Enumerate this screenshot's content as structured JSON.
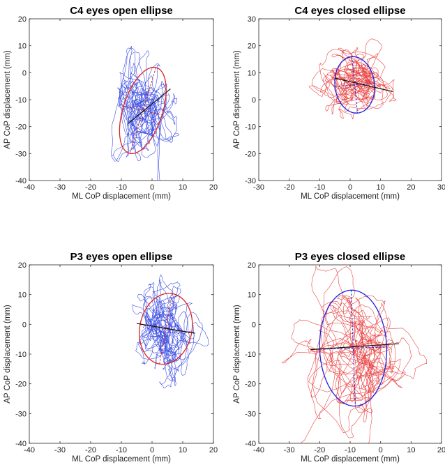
{
  "chart_data": [
    {
      "type": "line",
      "title": "C4 eyes open ellipse",
      "xlabel": "ML CoP displacement (mm)",
      "ylabel": "AP CoP displacement (mm)",
      "xlim": [
        -40,
        20
      ],
      "ylim": [
        -40,
        20
      ],
      "xticks": [
        -40,
        -30,
        -20,
        -10,
        0,
        10,
        20
      ],
      "yticks": [
        -40,
        -30,
        -20,
        -10,
        0,
        10,
        20
      ],
      "trace_color": "#2b3fe0",
      "ellipse_color": "#e02020",
      "center": [
        -3,
        -14
      ],
      "ellipse": {
        "semi_major": 16.5,
        "semi_minor": 6.5,
        "angle_deg": 75
      },
      "trace_spread": [
        4,
        8
      ],
      "regression_line": {
        "x": [
          -8,
          6
        ],
        "y": [
          -19,
          -6
        ]
      }
    },
    {
      "type": "line",
      "title": "C4 eyes closed ellipse",
      "xlabel": "ML CoP displacement (mm)",
      "ylabel": "AP CoP displacement (mm)",
      "xlim": [
        -30,
        30
      ],
      "ylim": [
        -30,
        30
      ],
      "xticks": [
        -30,
        -20,
        -10,
        0,
        10,
        20,
        30
      ],
      "yticks": [
        -30,
        -20,
        -10,
        0,
        10,
        20,
        30
      ],
      "trace_color": "#e83030",
      "ellipse_color": "#2020e0",
      "center": [
        1.5,
        5.5
      ],
      "ellipse": {
        "semi_major": 10.5,
        "semi_minor": 6.5,
        "angle_deg": 95
      },
      "trace_spread": [
        5,
        5
      ],
      "regression_line": {
        "x": [
          -5,
          14
        ],
        "y": [
          8,
          3
        ]
      }
    },
    {
      "type": "line",
      "title": "P3 eyes open ellipse",
      "xlabel": "ML CoP displacement (mm)",
      "ylabel": "AP CoP displacement (mm)",
      "xlim": [
        -40,
        20
      ],
      "ylim": [
        -40,
        20
      ],
      "xticks": [
        -40,
        -30,
        -20,
        -10,
        0,
        10,
        20
      ],
      "yticks": [
        -40,
        -30,
        -20,
        -10,
        0,
        10,
        20
      ],
      "trace_color": "#2b3fe0",
      "ellipse_color": "#e02020",
      "center": [
        4.5,
        -1.5
      ],
      "ellipse": {
        "semi_major": 12,
        "semi_minor": 8.5,
        "angle_deg": 80
      },
      "trace_spread": [
        4,
        7
      ],
      "regression_line": {
        "x": [
          -5,
          14
        ],
        "y": [
          0.3,
          -3
        ]
      }
    },
    {
      "type": "line",
      "title": "P3 eyes closed ellipse",
      "xlabel": "ML CoP displacement (mm)",
      "ylabel": "AP CoP displacement (mm)",
      "xlim": [
        -40,
        20
      ],
      "ylim": [
        -40,
        20
      ],
      "xticks": [
        -40,
        -30,
        -20,
        -10,
        0,
        10,
        20
      ],
      "yticks": [
        -40,
        -30,
        -20,
        -10,
        0,
        10,
        20
      ],
      "trace_color": "#e83030",
      "ellipse_color": "#2020e0",
      "center": [
        -9,
        -8
      ],
      "ellipse": {
        "semi_major": 19.5,
        "semi_minor": 11,
        "angle_deg": 92
      },
      "trace_spread": [
        7,
        10
      ],
      "regression_line": {
        "x": [
          -23,
          6
        ],
        "y": [
          -8.5,
          -6.5
        ]
      }
    }
  ]
}
